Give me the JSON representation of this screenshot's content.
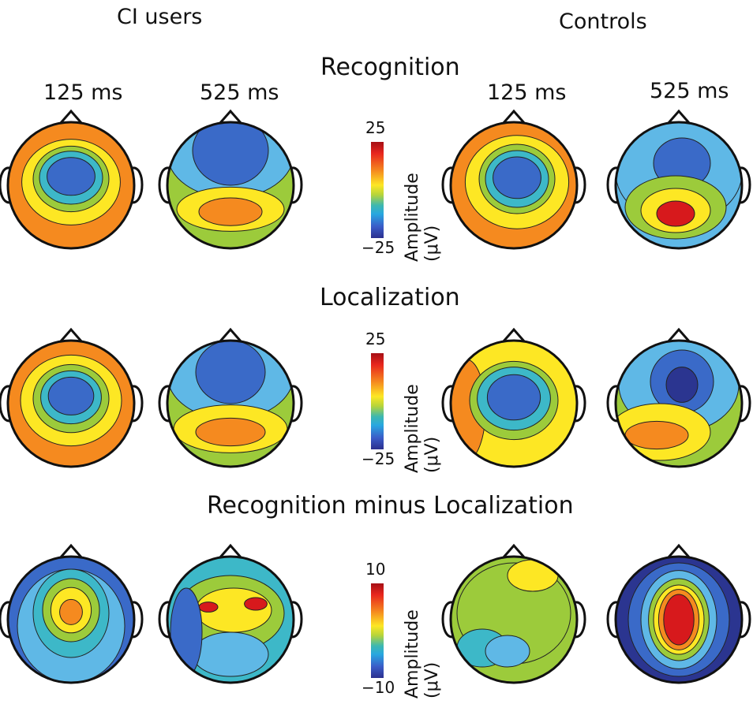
{
  "groups": {
    "left": "CI users",
    "right": "Controls"
  },
  "times": {
    "t1": "125 ms",
    "t2": "525 ms"
  },
  "sections": [
    {
      "title": "Recognition",
      "scale_max": "25",
      "scale_min": "−25",
      "unit": "Amplitude (μV)"
    },
    {
      "title": "Localization",
      "scale_max": "25",
      "scale_min": "−25",
      "unit": "Amplitude (μV)"
    },
    {
      "title": "Recognition minus Localization",
      "scale_max": "10",
      "scale_min": "−10",
      "unit": "Amplitude (μV)"
    }
  ],
  "colors": {
    "red": "#d7191c",
    "orange": "#f58a1f",
    "yellow": "#fde724",
    "green": "#9ccb3b",
    "cyan": "#3db8c8",
    "lightblue": "#5fb8e6",
    "blue": "#3a6ac8",
    "darkblue": "#2b3590"
  },
  "maps": [
    {
      "row": 0,
      "col": 0,
      "bg": "#f58a1f",
      "blobs": [
        [
          "yellow",
          0,
          -0.05,
          0.78,
          0.68
        ],
        [
          "green",
          0,
          -0.1,
          0.6,
          0.52
        ],
        [
          "cyan",
          0,
          -0.12,
          0.5,
          0.42
        ],
        [
          "blue",
          0,
          -0.14,
          0.38,
          0.3
        ]
      ]
    },
    {
      "row": 0,
      "col": 1,
      "bg": "#9ccb3b",
      "blobs": [
        [
          "lightblue",
          0,
          -0.5,
          1.0,
          0.7
        ],
        [
          "blue",
          0,
          -0.55,
          0.6,
          0.55
        ],
        [
          "yellow",
          0,
          0.38,
          0.85,
          0.35
        ],
        [
          "orange",
          0,
          0.42,
          0.5,
          0.22
        ]
      ]
    },
    {
      "row": 0,
      "col": 2,
      "bg": "#f58a1f",
      "blobs": [
        [
          "yellow",
          0.05,
          -0.05,
          0.82,
          0.74
        ],
        [
          "green",
          0.05,
          -0.1,
          0.6,
          0.55
        ],
        [
          "cyan",
          0.05,
          -0.1,
          0.5,
          0.45
        ],
        [
          "blue",
          0.05,
          -0.12,
          0.38,
          0.33
        ]
      ]
    },
    {
      "row": 0,
      "col": 3,
      "bg": "#5fb8e6",
      "blobs": [
        [
          "lightblue",
          0,
          -0.2,
          1.0,
          0.8
        ],
        [
          "blue",
          0.05,
          -0.35,
          0.45,
          0.4
        ],
        [
          "green",
          -0.05,
          0.35,
          0.8,
          0.5
        ],
        [
          "yellow",
          -0.05,
          0.4,
          0.55,
          0.35
        ],
        [
          "red",
          -0.05,
          0.45,
          0.3,
          0.2
        ]
      ]
    },
    {
      "row": 1,
      "col": 0,
      "bg": "#f58a1f",
      "blobs": [
        [
          "yellow",
          0,
          -0.05,
          0.8,
          0.72
        ],
        [
          "green",
          0,
          -0.08,
          0.6,
          0.54
        ],
        [
          "cyan",
          0,
          -0.1,
          0.48,
          0.42
        ],
        [
          "blue",
          0,
          -0.12,
          0.36,
          0.3
        ]
      ]
    },
    {
      "row": 1,
      "col": 1,
      "bg": "#9ccb3b",
      "blobs": [
        [
          "lightblue",
          0,
          -0.45,
          1.0,
          0.7
        ],
        [
          "blue",
          0,
          -0.5,
          0.55,
          0.5
        ],
        [
          "yellow",
          0,
          0.4,
          0.9,
          0.38
        ],
        [
          "orange",
          0,
          0.45,
          0.55,
          0.22
        ]
      ]
    },
    {
      "row": 1,
      "col": 2,
      "bg": "#fde724",
      "blobs": [
        [
          "orange",
          -0.75,
          0.1,
          0.3,
          0.8
        ],
        [
          "green",
          0,
          -0.05,
          0.7,
          0.62
        ],
        [
          "cyan",
          0,
          -0.08,
          0.58,
          0.5
        ],
        [
          "blue",
          0,
          -0.1,
          0.42,
          0.36
        ]
      ]
    },
    {
      "row": 1,
      "col": 3,
      "bg": "#9ccb3b",
      "blobs": [
        [
          "lightblue",
          0,
          -0.3,
          0.95,
          0.75
        ],
        [
          "blue",
          0.05,
          -0.35,
          0.5,
          0.5
        ],
        [
          "darkblue",
          0.05,
          -0.3,
          0.25,
          0.28
        ],
        [
          "yellow",
          -0.3,
          0.45,
          0.8,
          0.45
        ],
        [
          "orange",
          -0.35,
          0.5,
          0.5,
          0.22
        ]
      ]
    },
    {
      "row": 2,
      "col": 0,
      "bg": "#3a6ac8",
      "blobs": [
        [
          "lightblue",
          0,
          0.1,
          0.85,
          0.9
        ],
        [
          "cyan",
          0,
          -0.1,
          0.6,
          0.7
        ],
        [
          "green",
          0,
          -0.15,
          0.45,
          0.5
        ],
        [
          "yellow",
          0,
          -0.15,
          0.32,
          0.36
        ],
        [
          "orange",
          0,
          -0.12,
          0.18,
          0.2
        ]
      ]
    },
    {
      "row": 2,
      "col": 1,
      "bg": "#3db8c8",
      "blobs": [
        [
          "green",
          0,
          -0.1,
          0.85,
          0.6
        ],
        [
          "yellow",
          0.05,
          -0.15,
          0.6,
          0.35
        ],
        [
          "red",
          -0.35,
          -0.2,
          0.15,
          0.08
        ],
        [
          "red",
          0.4,
          -0.25,
          0.18,
          0.1
        ],
        [
          "lightblue",
          0,
          0.55,
          0.6,
          0.35
        ],
        [
          "blue",
          -0.7,
          0.2,
          0.25,
          0.7
        ]
      ]
    },
    {
      "row": 2,
      "col": 2,
      "bg": "#9ccb3b",
      "blobs": [
        [
          "green",
          0,
          -0.1,
          0.9,
          0.8
        ],
        [
          "yellow",
          0.3,
          -0.7,
          0.4,
          0.25
        ],
        [
          "cyan",
          -0.5,
          0.45,
          0.4,
          0.3
        ],
        [
          "lightblue",
          -0.1,
          0.5,
          0.35,
          0.25
        ]
      ]
    },
    {
      "row": 2,
      "col": 3,
      "bg": "#2b3590",
      "blobs": [
        [
          "blue",
          0,
          0,
          0.8,
          0.9
        ],
        [
          "lightblue",
          0,
          0,
          0.6,
          0.78
        ],
        [
          "green",
          0,
          0,
          0.48,
          0.65
        ],
        [
          "yellow",
          0,
          0,
          0.4,
          0.55
        ],
        [
          "orange",
          0,
          0,
          0.32,
          0.48
        ],
        [
          "red",
          0,
          0,
          0.24,
          0.4
        ]
      ]
    }
  ]
}
